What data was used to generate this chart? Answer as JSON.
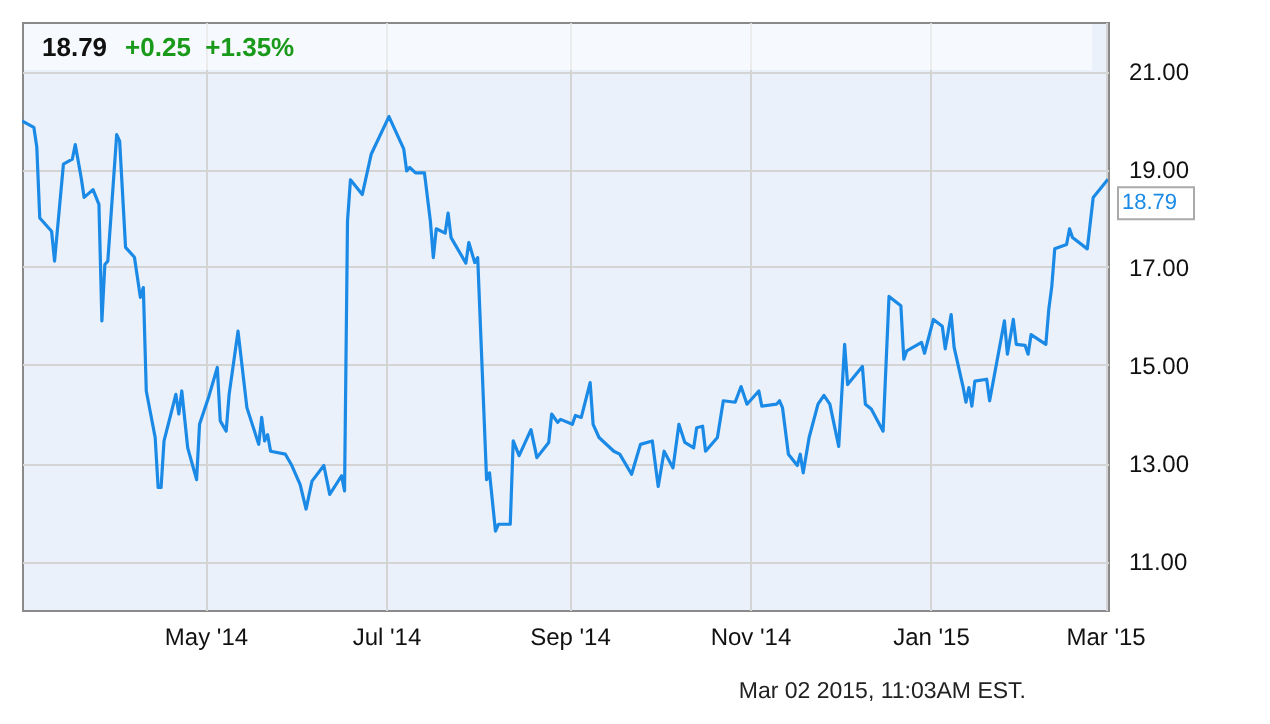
{
  "chart_data": {
    "type": "line",
    "title": "18.79",
    "subtitle": "+0.25  +1.35%",
    "annotations": [
      {
        "text": "18.79",
        "x": "2015-03-02",
        "y": 18.79
      },
      "Mar 02 2015, 11:03AM EST."
    ],
    "x": [
      "2014-02-28",
      "2014-03-04",
      "2014-03-05",
      "2014-03-06",
      "2014-03-10",
      "2014-03-11",
      "2014-03-14",
      "2014-03-17",
      "2014-03-18",
      "2014-03-20",
      "2014-03-21",
      "2014-03-24",
      "2014-03-26",
      "2014-03-27",
      "2014-03-28",
      "2014-03-29",
      "2014-04-01",
      "2014-04-02",
      "2014-04-04",
      "2014-04-07",
      "2014-04-09",
      "2014-04-10",
      "2014-04-11",
      "2014-04-14",
      "2014-04-15",
      "2014-04-16",
      "2014-04-17",
      "2014-04-21",
      "2014-04-22",
      "2014-04-23",
      "2014-04-25",
      "2014-04-28",
      "2014-04-29",
      "2014-05-02",
      "2014-05-05",
      "2014-05-06",
      "2014-05-08",
      "2014-05-09",
      "2014-05-12",
      "2014-05-15",
      "2014-05-19",
      "2014-05-20",
      "2014-05-21",
      "2014-05-22",
      "2014-05-23",
      "2014-05-28",
      "2014-05-30",
      "2014-06-02",
      "2014-06-04",
      "2014-06-06",
      "2014-06-10",
      "2014-06-12",
      "2014-06-16",
      "2014-06-17",
      "2014-06-18",
      "2014-06-19",
      "2014-06-23",
      "2014-06-26",
      "2014-07-02",
      "2014-07-07",
      "2014-07-08",
      "2014-07-09",
      "2014-07-11",
      "2014-07-14",
      "2014-07-16",
      "2014-07-17",
      "2014-07-18",
      "2014-07-21",
      "2014-07-22",
      "2014-07-23",
      "2014-07-28",
      "2014-07-29",
      "2014-07-31",
      "2014-08-01",
      "2014-08-04",
      "2014-08-05",
      "2014-08-07",
      "2014-08-08",
      "2014-08-12",
      "2014-08-13",
      "2014-08-15",
      "2014-08-19",
      "2014-08-21",
      "2014-08-25",
      "2014-08-26",
      "2014-08-28",
      "2014-08-29",
      "2014-09-02",
      "2014-09-03",
      "2014-09-05",
      "2014-09-08",
      "2014-09-09",
      "2014-09-11",
      "2014-09-16",
      "2014-09-18",
      "2014-09-22",
      "2014-09-25",
      "2014-09-29",
      "2014-10-01",
      "2014-10-03",
      "2014-10-06",
      "2014-10-08",
      "2014-10-10",
      "2014-10-13",
      "2014-10-14",
      "2014-10-16",
      "2014-10-17",
      "2014-10-21",
      "2014-10-23",
      "2014-10-27",
      "2014-10-29",
      "2014-10-31",
      "2014-11-04",
      "2014-11-05",
      "2014-11-10",
      "2014-11-11",
      "2014-11-12",
      "2014-11-14",
      "2014-11-17",
      "2014-11-18",
      "2014-11-19",
      "2014-11-21",
      "2014-11-24",
      "2014-11-26",
      "2014-11-28",
      "2014-12-01",
      "2014-12-03",
      "2014-12-04",
      "2014-12-09",
      "2014-12-10",
      "2014-12-12",
      "2014-12-16",
      "2014-12-18",
      "2014-12-22",
      "2014-12-23",
      "2014-12-24",
      "2014-12-29",
      "2014-12-30",
      "2015-01-02",
      "2015-01-05",
      "2015-01-06",
      "2015-01-08",
      "2015-01-09",
      "2015-01-12",
      "2015-01-13",
      "2015-01-14",
      "2015-01-15",
      "2015-01-16",
      "2015-01-20",
      "2015-01-21",
      "2015-01-26",
      "2015-01-27",
      "2015-01-29",
      "2015-01-30",
      "2015-02-02",
      "2015-02-03",
      "2015-02-04",
      "2015-02-09",
      "2015-02-10",
      "2015-02-11",
      "2015-02-12",
      "2015-02-16",
      "2015-02-17",
      "2015-02-18",
      "2015-02-23",
      "2015-02-25",
      "2015-03-02"
    ],
    "series": [
      {
        "color": "#1a8ae6",
        "values": [
          19.98,
          19.85,
          19.45,
          18.0,
          17.73,
          17.12,
          19.1,
          19.2,
          19.5,
          18.82,
          18.42,
          18.58,
          18.28,
          15.9,
          17.05,
          17.12,
          19.7,
          19.57,
          17.4,
          17.2,
          16.38,
          16.58,
          14.47,
          13.52,
          12.5,
          12.5,
          13.45,
          14.4,
          14.0,
          14.47,
          13.31,
          12.66,
          13.79,
          14.33,
          14.95,
          13.86,
          13.65,
          14.4,
          15.69,
          14.13,
          13.38,
          13.93,
          13.45,
          13.58,
          13.24,
          13.18,
          12.97,
          12.56,
          12.06,
          12.63,
          12.95,
          12.36,
          12.74,
          12.43,
          17.94,
          18.78,
          18.48,
          19.3,
          20.07,
          19.41,
          18.96,
          19.03,
          18.92,
          18.92,
          17.94,
          17.19,
          17.78,
          17.69,
          18.1,
          17.6,
          17.08,
          17.5,
          17.09,
          17.19,
          12.66,
          12.8,
          11.61,
          11.75,
          11.75,
          13.45,
          13.15,
          13.68,
          13.11,
          13.42,
          14.0,
          13.83,
          13.89,
          13.79,
          13.97,
          13.93,
          14.64,
          13.79,
          13.52,
          13.24,
          13.18,
          12.77,
          13.38,
          13.45,
          12.52,
          13.24,
          12.9,
          13.79,
          13.42,
          13.31,
          13.72,
          13.75,
          13.24,
          13.52,
          14.27,
          14.24,
          14.56,
          14.2,
          14.47,
          14.16,
          14.2,
          14.27,
          14.13,
          13.18,
          12.95,
          13.18,
          12.8,
          13.52,
          14.2,
          14.38,
          14.2,
          13.34,
          15.42,
          14.6,
          14.97,
          14.2,
          14.1,
          13.65,
          16.4,
          16.21,
          15.12,
          15.29,
          15.46,
          15.24,
          15.93,
          15.79,
          15.33,
          16.03,
          15.36,
          14.56,
          14.24,
          14.54,
          14.16,
          14.67,
          14.71,
          14.27,
          15.9,
          15.22,
          15.93,
          15.42,
          15.4,
          15.22,
          15.62,
          15.42,
          16.14,
          16.6,
          17.37,
          17.46,
          17.78,
          17.6,
          17.37,
          18.42,
          18.79
        ]
      }
    ],
    "xlim": [
      "2014-02-28",
      "2015-03-02"
    ],
    "xticks": [
      {
        "value": "2014-05-01",
        "label": "May '14"
      },
      {
        "value": "2014-07-01",
        "label": "Jul '14"
      },
      {
        "value": "2014-09-01",
        "label": "Sep '14"
      },
      {
        "value": "2014-11-01",
        "label": "Nov '14"
      },
      {
        "value": "2015-01-01",
        "label": "Jan '15"
      },
      {
        "value": "2015-03-01",
        "label": "Mar '15"
      }
    ],
    "ylim": [
      10,
      22
    ],
    "yticks": [
      {
        "value": 11,
        "label": "11.00"
      },
      {
        "value": 13,
        "label": "13.00"
      },
      {
        "value": 15,
        "label": "15.00"
      },
      {
        "value": 17,
        "label": "17.00"
      },
      {
        "value": 19,
        "label": "19.00"
      },
      {
        "value": 21,
        "label": "21.00"
      }
    ],
    "grid": true
  }
}
